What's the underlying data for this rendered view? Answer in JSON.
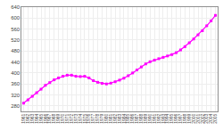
{
  "chart_data": {
    "type": "line",
    "x": [
      1961,
      1962,
      1963,
      1964,
      1965,
      1966,
      1967,
      1968,
      1969,
      1970,
      1971,
      1972,
      1973,
      1974,
      1975,
      1976,
      1977,
      1978,
      1979,
      1980,
      1981,
      1982,
      1983,
      1984,
      1985,
      1986,
      1987,
      1988,
      1989,
      1990,
      1991,
      1992,
      1993,
      1994,
      1995,
      1996,
      1997,
      1998,
      1999,
      2000,
      2001,
      2002,
      2003,
      2004,
      2005
    ],
    "values": [
      290,
      302,
      315,
      328,
      341,
      355,
      365,
      375,
      382,
      388,
      392,
      392,
      388,
      387,
      388,
      382,
      372,
      366,
      362,
      360,
      363,
      368,
      374,
      381,
      390,
      400,
      411,
      422,
      433,
      441,
      447,
      452,
      457,
      462,
      467,
      474,
      484,
      496,
      510,
      524,
      539,
      554,
      572,
      590,
      610
    ],
    "color": "#ff00ff",
    "marker": "square",
    "xlim": [
      1960.5,
      2005.5
    ],
    "xticks": [
      1961,
      1962,
      1963,
      1964,
      1965,
      1966,
      1967,
      1968,
      1969,
      1970,
      1971,
      1972,
      1973,
      1974,
      1975,
      1976,
      1977,
      1978,
      1979,
      1980,
      1981,
      1982,
      1983,
      1984,
      1985,
      1986,
      1987,
      1988,
      1989,
      1990,
      1991,
      1992,
      1993,
      1994,
      1995,
      1996,
      1997,
      1998,
      1999,
      2000,
      2001,
      2002,
      2003,
      2004,
      2005
    ],
    "ylim": [
      260,
      640
    ],
    "yticks": [
      280,
      320,
      360,
      400,
      440,
      480,
      520,
      560,
      600,
      640
    ],
    "grid": true
  }
}
